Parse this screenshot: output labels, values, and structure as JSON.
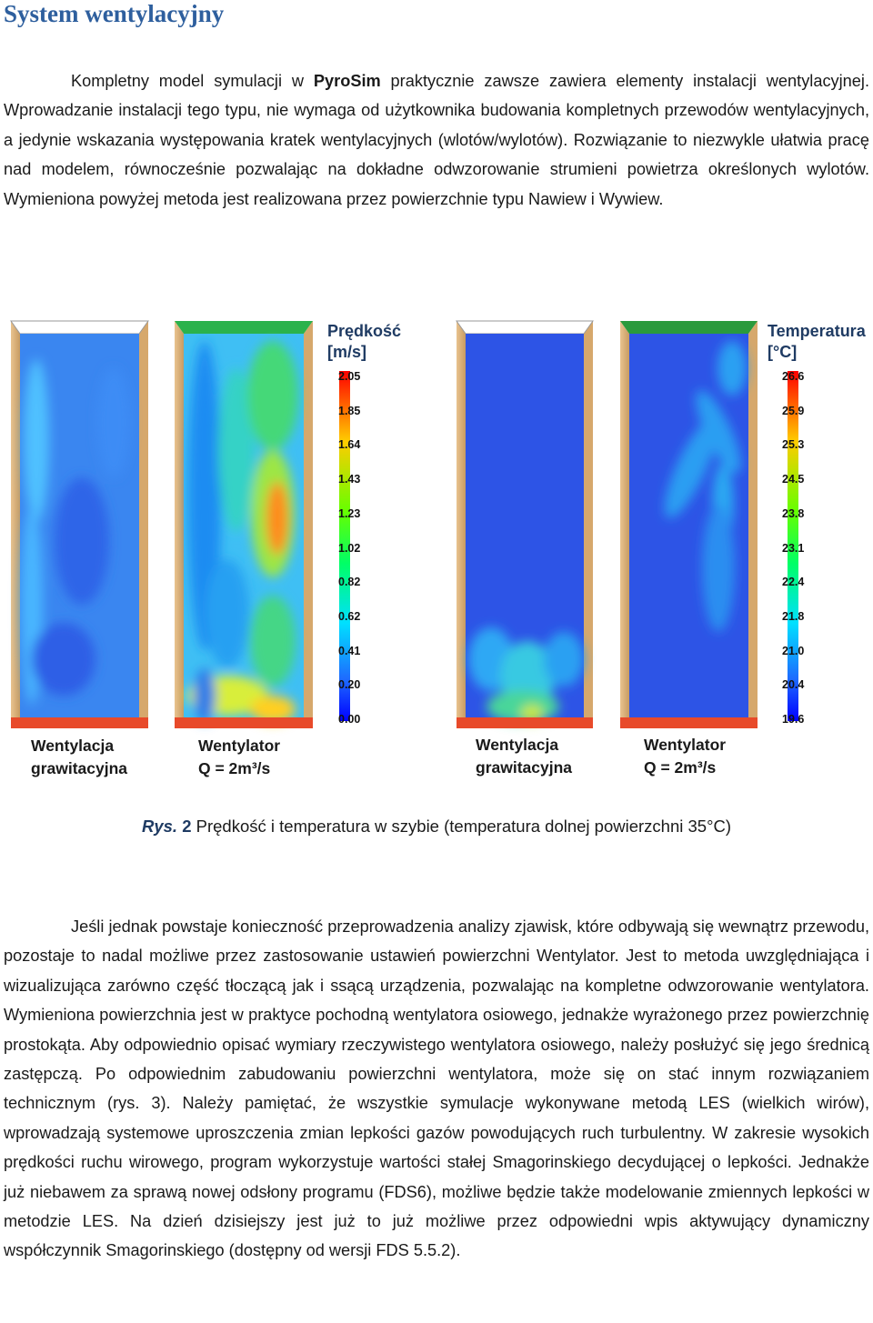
{
  "title": "System wentylacyjny",
  "para1": {
    "t1": "Kompletny model symulacji w ",
    "bold": "PyroSim",
    "t2": " praktycznie zawsze zawiera elementy instalacji wentylacyjnej. Wprowadzanie instalacji tego typu, nie wymaga od użytkownika budowania kompletnych przewodów wentylacyjnych, a jedynie wskazania występowania kratek wentylacyjnych (wlotów/wylotów). Rozwiązanie to niezwykle ułatwia pracę nad modelem, równocześnie pozwalając na dokładne odwzorowanie strumieni powietrza określonych wylotów. Wymieniona powyżej metoda jest realizowana przez powierzchnie typu Nawiew i Wywiew."
  },
  "figure": {
    "velocity": {
      "title1": "Prędkość",
      "title2": "[m/s]",
      "ticks": [
        "2.05",
        "1.85",
        "1.64",
        "1.43",
        "1.23",
        "1.02",
        "0.82",
        "0.62",
        "0.41",
        "0.20",
        "0.00"
      ]
    },
    "temperature": {
      "title1": "Temperatura",
      "title2": "[°C]",
      "ticks": [
        "26.6",
        "25.9",
        "25.3",
        "24.5",
        "23.8",
        "23.1",
        "22.4",
        "21.8",
        "21.0",
        "20.4",
        "19.6"
      ]
    },
    "labels": {
      "a1": "Wentylacja",
      "a2": "grawitacyjna",
      "b1": "Wentylator",
      "b2": "Q = 2m³/s",
      "c1": "Wentylacja",
      "c2": "grawitacyjna",
      "d1": "Wentylator",
      "d2": "Q = 2m³/s"
    }
  },
  "caption": {
    "rys": "Rys.",
    "num": "2",
    "text": " Prędkość i temperatura w szybie (temperatura dolnej powierzchni 35°C)"
  },
  "para2": "Jeśli jednak powstaje konieczność przeprowadzenia analizy zjawisk, które odbywają się wewnątrz przewodu, pozostaje to nadal możliwe przez zastosowanie ustawień powierzchni Wentylator. Jest to metoda uwzględniająca i wizualizująca zarówno część tłoczącą jak i ssącą urządzenia, pozwalając na kompletne odwzorowanie wentylatora. Wymieniona powierzchnia jest w praktyce pochodną wentylatora osiowego, jednakże wyrażonego przez powierzchnię prostokąta. Aby odpowiednio opisać wymiary rzeczywistego wentylatora osiowego, należy posłużyć się jego średnicą zastępczą. Po odpowiednim zabudowaniu powierzchni wentylatora, może się on stać innym rozwiązaniem technicznym (rys. 3). Należy pamiętać, że wszystkie symulacje wykonywane metodą LES (wielkich wirów), wprowadzają systemowe uproszczenia zmian lepkości gazów powodujących ruch turbulentny. W zakresie wysokich prędkości ruchu wirowego, program wykorzystuje wartości stałej Smagorinskiego decydującej o lepkości. Jednakże już niebawem za sprawą nowej odsłony programu (FDS6), możliwe będzie także modelowanie zmiennych lepkości w metodzie LES. Na dzień dzisiejszy jest już to już możliwe przez odpowiedni wpis aktywujący dynamiczny współczynnik Smagorinskiego (dostępny od wersji FDS 5.5.2)."
}
